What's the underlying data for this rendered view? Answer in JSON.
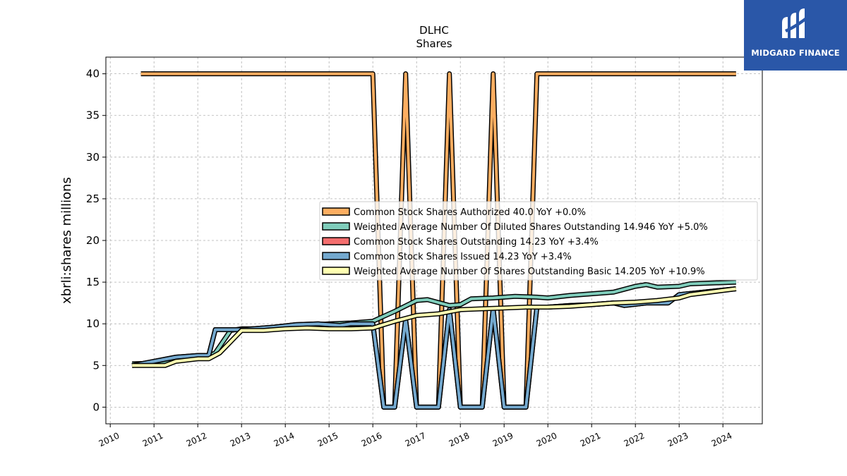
{
  "chart_data": {
    "type": "line",
    "title": "DLHC",
    "subtitle": "Shares",
    "xlabel": "",
    "ylabel": "xbrli:shares millions",
    "xlim": [
      2009.9,
      2024.9
    ],
    "ylim": [
      -2.0,
      42.0
    ],
    "x_ticks": [
      "2010",
      "2011",
      "2012",
      "2013",
      "2014",
      "2015",
      "2016",
      "2017",
      "2018",
      "2019",
      "2020",
      "2021",
      "2022",
      "2023",
      "2024"
    ],
    "y_ticks": [
      "0",
      "5",
      "10",
      "15",
      "20",
      "25",
      "30",
      "35",
      "40"
    ],
    "grid": true,
    "legend_position": "center-right",
    "series": [
      {
        "name": "Common Stock Shares Authorized  40.0 YoY +0.0%",
        "color": "#fdae61",
        "points": [
          [
            2010.7,
            40.0
          ],
          [
            2016.0,
            40.0
          ],
          [
            2016.25,
            0.0
          ],
          [
            2016.5,
            0.0
          ],
          [
            2016.75,
            40.0
          ],
          [
            2017.0,
            0.0
          ],
          [
            2017.25,
            0.0
          ],
          [
            2017.5,
            0.0
          ],
          [
            2017.75,
            40.0
          ],
          [
            2018.0,
            0.0
          ],
          [
            2018.25,
            0.0
          ],
          [
            2018.5,
            0.0
          ],
          [
            2018.75,
            40.0
          ],
          [
            2019.0,
            0.0
          ],
          [
            2019.25,
            0.0
          ],
          [
            2019.5,
            0.0
          ],
          [
            2019.75,
            40.0
          ],
          [
            2024.3,
            40.0
          ]
        ]
      },
      {
        "name": "Weighted Average Number Of Diluted Shares Outstanding  14.946 YoY +5.0%",
        "color": "#7fcdbb",
        "points": [
          [
            2010.5,
            5.2
          ],
          [
            2011.25,
            5.3
          ],
          [
            2011.75,
            5.8
          ],
          [
            2012.2,
            6.0
          ],
          [
            2012.4,
            6.5
          ],
          [
            2012.75,
            9.2
          ],
          [
            2013.0,
            9.4
          ],
          [
            2013.5,
            9.4
          ],
          [
            2014.0,
            9.7
          ],
          [
            2014.5,
            9.8
          ],
          [
            2015.0,
            10.0
          ],
          [
            2015.5,
            10.1
          ],
          [
            2016.0,
            10.3
          ],
          [
            2016.5,
            11.5
          ],
          [
            2017.0,
            12.8
          ],
          [
            2017.25,
            12.9
          ],
          [
            2017.75,
            12.2
          ],
          [
            2018.0,
            12.3
          ],
          [
            2018.25,
            13.0
          ],
          [
            2018.75,
            13.1
          ],
          [
            2019.25,
            13.3
          ],
          [
            2019.75,
            13.2
          ],
          [
            2020.0,
            13.1
          ],
          [
            2020.5,
            13.4
          ],
          [
            2021.0,
            13.6
          ],
          [
            2021.5,
            13.8
          ],
          [
            2022.0,
            14.5
          ],
          [
            2022.25,
            14.7
          ],
          [
            2022.5,
            14.4
          ],
          [
            2023.0,
            14.5
          ],
          [
            2023.25,
            14.8
          ],
          [
            2024.3,
            15.0
          ]
        ]
      },
      {
        "name": "Common Stock Shares Outstanding  14.23 YoY +3.4%",
        "color": "#f46d6d",
        "points": [
          [
            2010.5,
            5.0
          ],
          [
            2011.0,
            5.5
          ],
          [
            2011.5,
            6.0
          ],
          [
            2012.0,
            6.2
          ],
          [
            2012.25,
            6.2
          ],
          [
            2012.4,
            9.3
          ],
          [
            2013.0,
            9.3
          ],
          [
            2013.75,
            9.6
          ],
          [
            2014.25,
            9.9
          ],
          [
            2014.75,
            10.0
          ],
          [
            2015.25,
            9.8
          ],
          [
            2015.5,
            10.0
          ],
          [
            2016.0,
            10.0
          ],
          [
            2016.25,
            0.0
          ],
          [
            2016.5,
            0.0
          ],
          [
            2016.75,
            10.5
          ],
          [
            2017.0,
            0.0
          ],
          [
            2017.5,
            0.0
          ],
          [
            2017.75,
            11.7
          ],
          [
            2018.0,
            0.0
          ],
          [
            2018.5,
            0.0
          ],
          [
            2018.75,
            11.8
          ],
          [
            2019.0,
            0.0
          ],
          [
            2019.5,
            0.0
          ],
          [
            2019.75,
            12.0
          ],
          [
            2020.0,
            12.0
          ],
          [
            2020.5,
            12.2
          ],
          [
            2021.0,
            12.3
          ],
          [
            2021.5,
            12.5
          ],
          [
            2021.75,
            12.2
          ],
          [
            2022.25,
            12.5
          ],
          [
            2022.75,
            12.5
          ],
          [
            2023.0,
            13.5
          ],
          [
            2024.3,
            14.2
          ]
        ]
      },
      {
        "name": "Common Stock Shares Issued  14.23 YoY +3.4%",
        "color": "#74a9cf",
        "points": [
          [
            2010.5,
            5.0
          ],
          [
            2011.0,
            5.5
          ],
          [
            2011.5,
            6.0
          ],
          [
            2012.0,
            6.2
          ],
          [
            2012.25,
            6.2
          ],
          [
            2012.4,
            9.3
          ],
          [
            2013.0,
            9.3
          ],
          [
            2013.75,
            9.6
          ],
          [
            2014.25,
            9.9
          ],
          [
            2014.75,
            10.0
          ],
          [
            2015.25,
            9.8
          ],
          [
            2015.5,
            10.0
          ],
          [
            2016.0,
            10.0
          ],
          [
            2016.25,
            0.0
          ],
          [
            2016.5,
            0.0
          ],
          [
            2016.75,
            10.5
          ],
          [
            2017.0,
            0.0
          ],
          [
            2017.5,
            0.0
          ],
          [
            2017.75,
            11.7
          ],
          [
            2018.0,
            0.0
          ],
          [
            2018.5,
            0.0
          ],
          [
            2018.75,
            11.8
          ],
          [
            2019.0,
            0.0
          ],
          [
            2019.5,
            0.0
          ],
          [
            2019.75,
            12.0
          ],
          [
            2020.0,
            12.0
          ],
          [
            2020.5,
            12.2
          ],
          [
            2021.0,
            12.3
          ],
          [
            2021.5,
            12.5
          ],
          [
            2021.75,
            12.2
          ],
          [
            2022.25,
            12.5
          ],
          [
            2022.75,
            12.5
          ],
          [
            2023.0,
            13.5
          ],
          [
            2024.3,
            14.2
          ]
        ]
      },
      {
        "name": "Weighted Average Number Of Shares Outstanding Basic  14.205 YoY +10.9%",
        "color": "#ffffb2",
        "points": [
          [
            2010.5,
            5.0
          ],
          [
            2011.25,
            5.0
          ],
          [
            2011.5,
            5.5
          ],
          [
            2012.0,
            5.8
          ],
          [
            2012.25,
            5.8
          ],
          [
            2012.5,
            6.5
          ],
          [
            2013.0,
            9.2
          ],
          [
            2013.5,
            9.2
          ],
          [
            2014.0,
            9.4
          ],
          [
            2014.5,
            9.5
          ],
          [
            2015.0,
            9.4
          ],
          [
            2015.5,
            9.4
          ],
          [
            2016.0,
            9.5
          ],
          [
            2016.5,
            10.3
          ],
          [
            2017.0,
            11.0
          ],
          [
            2017.5,
            11.2
          ],
          [
            2018.0,
            11.7
          ],
          [
            2018.5,
            11.8
          ],
          [
            2019.0,
            11.9
          ],
          [
            2019.5,
            12.0
          ],
          [
            2020.0,
            12.0
          ],
          [
            2020.5,
            12.1
          ],
          [
            2021.0,
            12.3
          ],
          [
            2021.5,
            12.5
          ],
          [
            2022.0,
            12.6
          ],
          [
            2022.5,
            12.8
          ],
          [
            2023.0,
            13.1
          ],
          [
            2023.25,
            13.5
          ],
          [
            2024.3,
            14.2
          ]
        ]
      }
    ]
  },
  "logo": {
    "text": "MIDGARD FINANCE",
    "color": "#2a57a8"
  }
}
